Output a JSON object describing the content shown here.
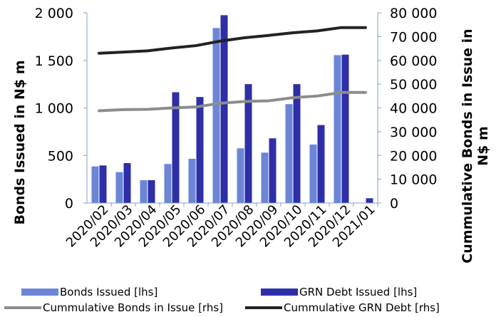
{
  "chart_data": {
    "type": "bar",
    "categories": [
      "2020/02",
      "2020/03",
      "2020/04",
      "2020/05",
      "2020/06",
      "2020/07",
      "2020/08",
      "2020/09",
      "2020/10",
      "2020/11",
      "2020/12",
      "2021/01"
    ],
    "ylabel": "Bonds Issued in N$ m",
    "y2label": "Cummulative Bonds in Issue in N$ m",
    "ylim": [
      0,
      2000
    ],
    "y2lim": [
      0,
      80000
    ],
    "yticks": [
      "0",
      "500",
      "1 000",
      "1 500",
      "2 000"
    ],
    "y2ticks": [
      "0",
      "10 000",
      "20 000",
      "30 000",
      "40 000",
      "50 000",
      "60 000",
      "70 000",
      "80 000"
    ],
    "grid": false,
    "legend_position": "bottom",
    "series": [
      {
        "name": "Bonds Issued [lhs]",
        "type": "bar",
        "axis": "left",
        "color": "#6b86d6",
        "values": [
          385,
          325,
          240,
          410,
          465,
          1840,
          575,
          530,
          1040,
          615,
          1555,
          0
        ]
      },
      {
        "name": "GRN Debt Issued [lhs]",
        "type": "bar",
        "axis": "left",
        "color": "#2e2ea8",
        "values": [
          395,
          420,
          240,
          1165,
          1115,
          1975,
          1250,
          680,
          1250,
          820,
          1560,
          50
        ]
      },
      {
        "name": "Cummulative Bonds in Issue [rhs]",
        "type": "line",
        "axis": "right",
        "color": "#8c8c8c",
        "values": [
          38800,
          39300,
          39400,
          40000,
          40400,
          42000,
          42700,
          43000,
          44300,
          45000,
          46500,
          46500
        ]
      },
      {
        "name": "Cummulative GRN Debt [rhs]",
        "type": "line",
        "axis": "right",
        "color": "#222222",
        "values": [
          63000,
          63500,
          64000,
          65200,
          66200,
          68100,
          69500,
          70500,
          71600,
          72400,
          73800,
          73800
        ]
      }
    ]
  }
}
